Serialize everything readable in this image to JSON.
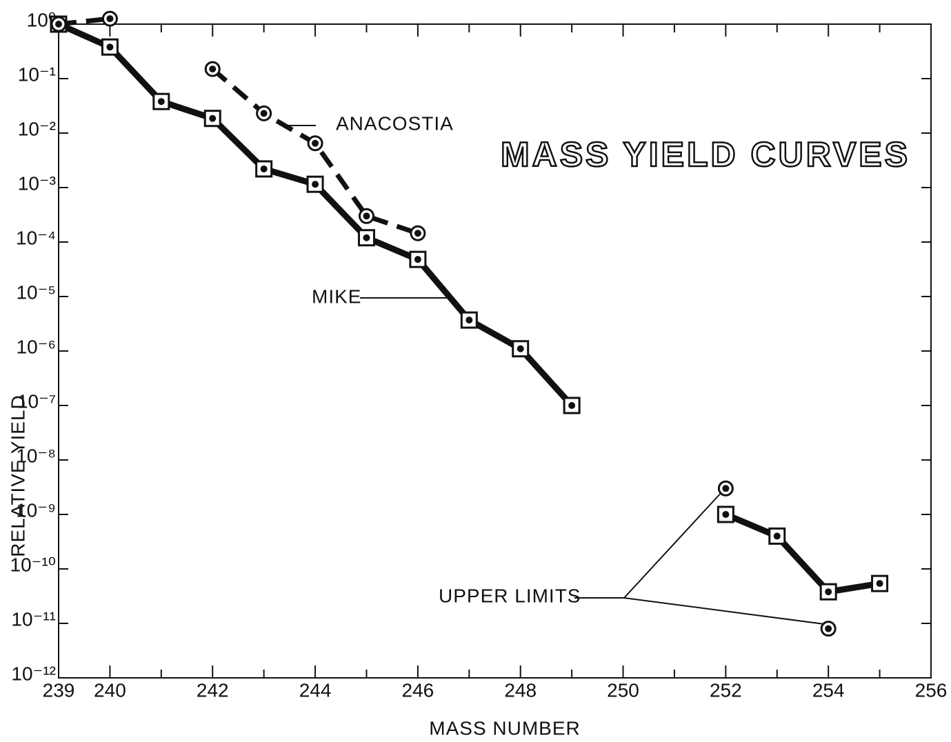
{
  "chart_data": {
    "type": "line",
    "title": "MASS YIELD CURVES",
    "x_label": "MASS NUMBER",
    "y_label": "RELATIVE YIELD",
    "x": [
      239,
      240,
      241,
      242,
      243,
      244,
      245,
      246,
      247,
      248,
      249,
      250,
      251,
      252,
      253,
      254,
      255
    ],
    "series": [
      {
        "name": "MIKE",
        "color": "#111111",
        "marker": "square",
        "dashed": false,
        "values": [
          1,
          0.38,
          0.038,
          0.0186,
          0.0022,
          0.00115,
          0.00012,
          4.8e-05,
          3.7e-06,
          1.1e-06,
          1e-07,
          null,
          null,
          1e-09,
          4e-10,
          3.8e-11,
          5.4e-11
        ]
      },
      {
        "name": "ANACOSTIA",
        "color": "#111111",
        "marker": "circle",
        "dashed": true,
        "values": [
          1,
          1.26,
          null,
          0.15,
          0.023,
          0.0065,
          0.0003,
          0.000145,
          null,
          null,
          null,
          null,
          null,
          null,
          null,
          null,
          null
        ]
      },
      {
        "name": "UPPER LIMITS",
        "color": "#111111",
        "marker": "circle",
        "line": false,
        "values": [
          null,
          null,
          null,
          null,
          null,
          null,
          null,
          null,
          null,
          null,
          null,
          null,
          null,
          3e-09,
          null,
          8e-12,
          null
        ]
      }
    ],
    "xlim": [
      239,
      256
    ],
    "xticks": [
      239,
      240,
      242,
      244,
      246,
      248,
      250,
      252,
      254,
      256
    ],
    "xminorticks": [
      241,
      243,
      245,
      247,
      249,
      251,
      253,
      255
    ],
    "ylog": true,
    "ylim": [
      1e-12,
      1
    ],
    "yticks": [
      {
        "value": 1,
        "label": "10⁰"
      },
      {
        "value": 0.1,
        "label": "10⁻¹"
      },
      {
        "value": 0.01,
        "label": "10⁻²"
      },
      {
        "value": 0.001,
        "label": "10⁻³"
      },
      {
        "value": 0.0001,
        "label": "10⁻⁴"
      },
      {
        "value": 1e-05,
        "label": "10⁻⁵"
      },
      {
        "value": 1e-06,
        "label": "10⁻⁶"
      },
      {
        "value": 1e-07,
        "label": "10⁻⁷"
      },
      {
        "value": 1e-08,
        "label": "10⁻⁸"
      },
      {
        "value": 1e-09,
        "label": "10⁻⁹"
      },
      {
        "value": 1e-10,
        "label": "10⁻¹⁰"
      },
      {
        "value": 1e-11,
        "label": "10⁻¹¹"
      },
      {
        "value": 1e-12,
        "label": "10⁻¹²"
      }
    ]
  }
}
